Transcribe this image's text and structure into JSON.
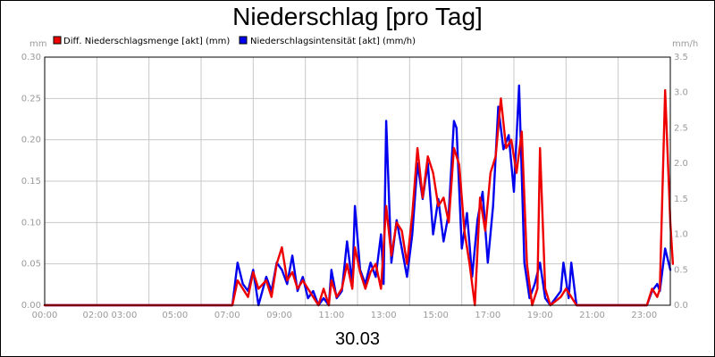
{
  "chart_data": {
    "type": "line",
    "title": "Niederschlag [pro Tag]",
    "date_label": "30.03",
    "x_ticks": [
      "00:00",
      "02:00 03:00",
      "05:00",
      "07:00",
      "09:00",
      "11:00",
      "13:00",
      "15:00",
      "17:00",
      "19:00",
      "21:00",
      "23:00"
    ],
    "x_tick_hours": [
      0,
      2.5,
      5,
      7,
      9,
      11,
      13,
      15,
      17,
      19,
      21,
      23
    ],
    "x_range": [
      0,
      24
    ],
    "y_left": {
      "unit": "mm",
      "range": [
        0,
        0.3
      ],
      "ticks": [
        "0.00",
        "0.05",
        "0.10",
        "0.15",
        "0.20",
        "0.25",
        "0.30"
      ]
    },
    "y_right": {
      "unit": "mm/h",
      "range": [
        0,
        3.5
      ],
      "ticks": [
        "0.0",
        "0.5",
        "1.0",
        "1.5",
        "2.0",
        "2.5",
        "3.0",
        "3.5"
      ]
    },
    "grid": true,
    "legend_position": "top-left",
    "series": [
      {
        "name": "Niederschlagsintensität [akt] (mm/h)",
        "color": "#0000ee",
        "axis": "right",
        "points": [
          [
            0,
            0
          ],
          [
            7.2,
            0
          ],
          [
            7.4,
            0.6
          ],
          [
            7.6,
            0.3
          ],
          [
            7.8,
            0.2
          ],
          [
            8.0,
            0.5
          ],
          [
            8.2,
            0
          ],
          [
            8.5,
            0.4
          ],
          [
            8.7,
            0.2
          ],
          [
            8.9,
            0.6
          ],
          [
            9.1,
            0.5
          ],
          [
            9.3,
            0.3
          ],
          [
            9.5,
            0.7
          ],
          [
            9.7,
            0.2
          ],
          [
            9.9,
            0.4
          ],
          [
            10.1,
            0.1
          ],
          [
            10.3,
            0.2
          ],
          [
            10.5,
            0
          ],
          [
            10.7,
            0.1
          ],
          [
            10.9,
            0
          ],
          [
            11.0,
            0.5
          ],
          [
            11.2,
            0.1
          ],
          [
            11.4,
            0.2
          ],
          [
            11.6,
            0.9
          ],
          [
            11.8,
            0.3
          ],
          [
            11.9,
            1.4
          ],
          [
            12.1,
            0.5
          ],
          [
            12.3,
            0.3
          ],
          [
            12.5,
            0.6
          ],
          [
            12.7,
            0.4
          ],
          [
            12.9,
            1.0
          ],
          [
            13.0,
            0.3
          ],
          [
            13.1,
            2.6
          ],
          [
            13.3,
            0.6
          ],
          [
            13.5,
            1.2
          ],
          [
            13.7,
            0.8
          ],
          [
            13.9,
            0.4
          ],
          [
            14.1,
            1.0
          ],
          [
            14.3,
            2.0
          ],
          [
            14.5,
            1.5
          ],
          [
            14.7,
            2.0
          ],
          [
            14.9,
            1.0
          ],
          [
            15.1,
            1.5
          ],
          [
            15.3,
            0.9
          ],
          [
            15.5,
            1.3
          ],
          [
            15.7,
            2.6
          ],
          [
            15.8,
            2.5
          ],
          [
            16.0,
            0.8
          ],
          [
            16.2,
            1.3
          ],
          [
            16.4,
            0.4
          ],
          [
            16.6,
            1.2
          ],
          [
            16.8,
            1.6
          ],
          [
            17.0,
            0.6
          ],
          [
            17.2,
            1.4
          ],
          [
            17.4,
            2.8
          ],
          [
            17.6,
            2.2
          ],
          [
            17.8,
            2.4
          ],
          [
            18.0,
            1.6
          ],
          [
            18.2,
            3.1
          ],
          [
            18.4,
            0.6
          ],
          [
            18.6,
            0.1
          ],
          [
            18.8,
            0.3
          ],
          [
            19.0,
            0.6
          ],
          [
            19.2,
            0.1
          ],
          [
            19.4,
            0
          ],
          [
            19.8,
            0.2
          ],
          [
            19.9,
            0.6
          ],
          [
            20.1,
            0.1
          ],
          [
            20.2,
            0.6
          ],
          [
            20.4,
            0
          ],
          [
            23.1,
            0
          ],
          [
            23.3,
            0.2
          ],
          [
            23.5,
            0.3
          ],
          [
            23.6,
            0.2
          ],
          [
            23.8,
            0.8
          ],
          [
            24.0,
            0.5
          ]
        ]
      },
      {
        "name": "Diff. Niederschlagsmenge [akt] (mm)",
        "color": "#ee0000",
        "axis": "left",
        "points": [
          [
            0,
            0
          ],
          [
            7.2,
            0
          ],
          [
            7.4,
            0.03
          ],
          [
            7.6,
            0.02
          ],
          [
            7.8,
            0.01
          ],
          [
            8.0,
            0.04
          ],
          [
            8.2,
            0.02
          ],
          [
            8.5,
            0.03
          ],
          [
            8.7,
            0.01
          ],
          [
            8.9,
            0.05
          ],
          [
            9.1,
            0.07
          ],
          [
            9.3,
            0.03
          ],
          [
            9.5,
            0.04
          ],
          [
            9.7,
            0.02
          ],
          [
            9.9,
            0.03
          ],
          [
            10.1,
            0.02
          ],
          [
            10.3,
            0.01
          ],
          [
            10.5,
            0
          ],
          [
            10.7,
            0.02
          ],
          [
            10.9,
            0
          ],
          [
            11.0,
            0.03
          ],
          [
            11.2,
            0.01
          ],
          [
            11.4,
            0.02
          ],
          [
            11.6,
            0.05
          ],
          [
            11.8,
            0.02
          ],
          [
            11.9,
            0.07
          ],
          [
            12.1,
            0.04
          ],
          [
            12.3,
            0.02
          ],
          [
            12.5,
            0.04
          ],
          [
            12.7,
            0.05
          ],
          [
            12.9,
            0.02
          ],
          [
            13.1,
            0.12
          ],
          [
            13.3,
            0.06
          ],
          [
            13.5,
            0.1
          ],
          [
            13.7,
            0.09
          ],
          [
            13.9,
            0.05
          ],
          [
            14.1,
            0.11
          ],
          [
            14.3,
            0.19
          ],
          [
            14.5,
            0.13
          ],
          [
            14.7,
            0.18
          ],
          [
            14.9,
            0.16
          ],
          [
            15.1,
            0.12
          ],
          [
            15.3,
            0.13
          ],
          [
            15.5,
            0.1
          ],
          [
            15.7,
            0.19
          ],
          [
            15.9,
            0.17
          ],
          [
            16.1,
            0.09
          ],
          [
            16.3,
            0.05
          ],
          [
            16.5,
            0
          ],
          [
            16.7,
            0.13
          ],
          [
            16.9,
            0.09
          ],
          [
            17.1,
            0.16
          ],
          [
            17.3,
            0.18
          ],
          [
            17.5,
            0.25
          ],
          [
            17.7,
            0.19
          ],
          [
            17.9,
            0.2
          ],
          [
            18.1,
            0.16
          ],
          [
            18.3,
            0.21
          ],
          [
            18.5,
            0.05
          ],
          [
            18.7,
            0
          ],
          [
            18.9,
            0.02
          ],
          [
            19.0,
            0.19
          ],
          [
            19.2,
            0.02
          ],
          [
            19.4,
            0
          ],
          [
            19.8,
            0.01
          ],
          [
            20.0,
            0.02
          ],
          [
            20.2,
            0.01
          ],
          [
            20.4,
            0
          ],
          [
            23.1,
            0
          ],
          [
            23.3,
            0.02
          ],
          [
            23.5,
            0.01
          ],
          [
            23.6,
            0.02
          ],
          [
            23.8,
            0.26
          ],
          [
            24.0,
            0.1
          ],
          [
            24.1,
            0.05
          ]
        ]
      }
    ]
  }
}
